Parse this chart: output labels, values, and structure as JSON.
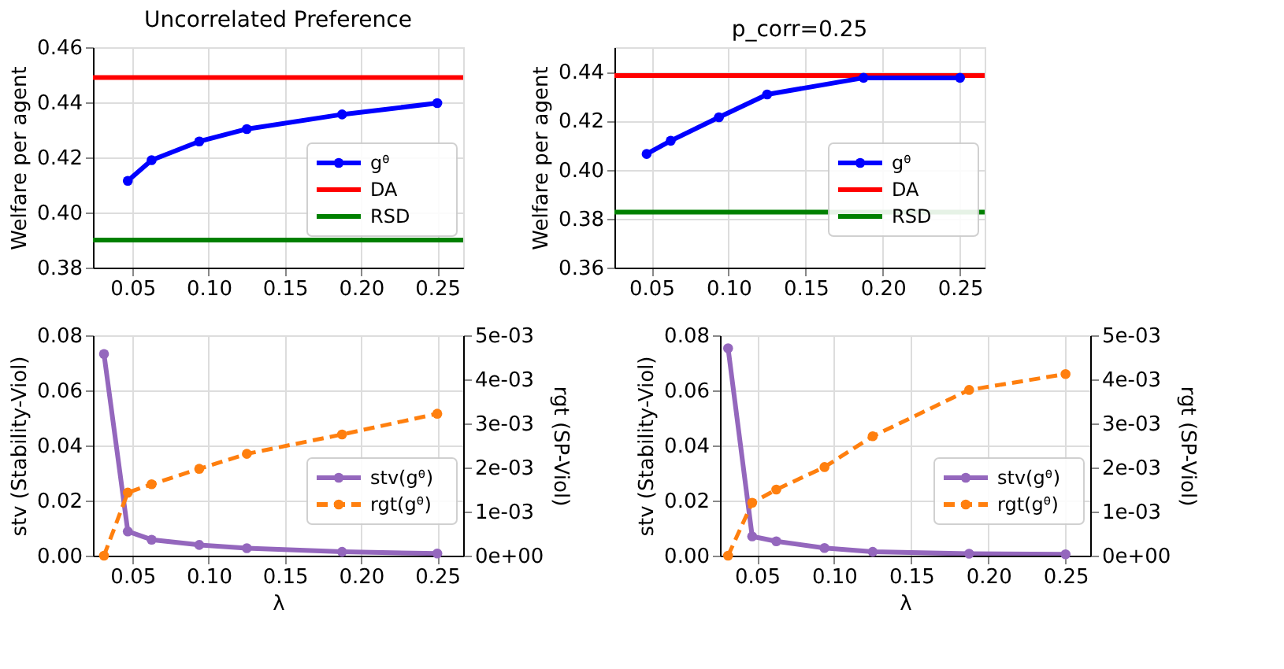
{
  "chart_data": [
    {
      "type": "line",
      "title": "Uncorrelated Preference",
      "ylabel": "Welfare per agent",
      "x": [
        0.046875,
        0.0625,
        0.09375,
        0.125,
        0.1875,
        0.25
      ],
      "series": [
        {
          "name": "gᶿ",
          "color": "#0000ff",
          "values": [
            0.4115,
            0.419,
            0.4258,
            0.4303,
            0.4356,
            0.4397
          ]
        }
      ],
      "ref_lines": [
        {
          "axis": "y",
          "value": 0.449,
          "label": "DA",
          "color": "#ff0000"
        },
        {
          "axis": "y",
          "value": 0.39,
          "label": "RSD",
          "color": "#008000"
        }
      ],
      "xlim": [
        0.024,
        0.267
      ],
      "xticks": [
        {
          "value": 0.05,
          "label": "0.05"
        },
        {
          "value": 0.1,
          "label": "0.10"
        },
        {
          "value": 0.15,
          "label": "0.15"
        },
        {
          "value": 0.2,
          "label": "0.20"
        },
        {
          "value": 0.25,
          "label": "0.25"
        }
      ],
      "ylim": [
        0.38,
        0.46
      ],
      "yticks": [
        {
          "value": 0.38,
          "label": "0.38"
        },
        {
          "value": 0.4,
          "label": "0.40"
        },
        {
          "value": 0.42,
          "label": "0.42"
        },
        {
          "value": 0.44,
          "label": "0.44"
        },
        {
          "value": 0.46,
          "label": "0.46"
        }
      ],
      "grid": true,
      "legend": "bottom right",
      "marker": "circle",
      "line_style": "solid"
    },
    {
      "type": "line",
      "title": "p_corr=0.25",
      "ylabel": "Welfare per agent",
      "x": [
        0.046875,
        0.0625,
        0.09375,
        0.125,
        0.1875,
        0.25
      ],
      "series": [
        {
          "name": "gᶿ",
          "color": "#0000ff",
          "values": [
            0.4064,
            0.4118,
            0.4214,
            0.4307,
            0.4375,
            0.4375
          ]
        }
      ],
      "ref_lines": [
        {
          "axis": "y",
          "value": 0.4384,
          "label": "DA",
          "color": "#ff0000"
        },
        {
          "axis": "y",
          "value": 0.3827,
          "label": "RSD",
          "color": "#008000"
        }
      ],
      "xlim": [
        0.026,
        0.266
      ],
      "xticks": [
        {
          "value": 0.05,
          "label": "0.05"
        },
        {
          "value": 0.1,
          "label": "0.10"
        },
        {
          "value": 0.15,
          "label": "0.15"
        },
        {
          "value": 0.2,
          "label": "0.20"
        },
        {
          "value": 0.25,
          "label": "0.25"
        }
      ],
      "ylim": [
        0.36,
        0.45
      ],
      "yticks": [
        {
          "value": 0.36,
          "label": "0.36"
        },
        {
          "value": 0.38,
          "label": "0.38"
        },
        {
          "value": 0.4,
          "label": "0.40"
        },
        {
          "value": 0.42,
          "label": "0.42"
        },
        {
          "value": 0.44,
          "label": "0.44"
        }
      ],
      "grid": true,
      "legend": "bottom right",
      "marker": "circle",
      "line_style": "solid"
    },
    {
      "type": "line",
      "xlabel": "λ",
      "ylabel": "stv (Stability-Viol)",
      "y2label": "rgt (SP-Viol)",
      "x": [
        0.03125,
        0.046875,
        0.0625,
        0.09375,
        0.125,
        0.1875,
        0.25
      ],
      "series": [
        {
          "name": "stv(gᶿ)",
          "color": "#9467bd",
          "line_style": "solid",
          "values": [
            0.0732,
            0.0088,
            0.0058,
            0.0039,
            0.0027,
            0.0014,
            0.0008
          ]
        },
        {
          "name": "rgt(gᶿ)",
          "color": "#ff7f0e",
          "axis": "y2",
          "line_style": "dashed",
          "values": [
            0,
            0.00143,
            0.00162,
            0.00197,
            0.00231,
            0.00275,
            0.00322
          ]
        }
      ],
      "xlim": [
        0.024,
        0.267
      ],
      "xticks": [
        {
          "value": 0.05,
          "label": "0.05"
        },
        {
          "value": 0.1,
          "label": "0.10"
        },
        {
          "value": 0.15,
          "label": "0.15"
        },
        {
          "value": 0.2,
          "label": "0.20"
        },
        {
          "value": 0.25,
          "label": "0.25"
        }
      ],
      "ylim": [
        0,
        0.08
      ],
      "yticks": [
        {
          "value": 0,
          "label": "0.00"
        },
        {
          "value": 0.02,
          "label": "0.02"
        },
        {
          "value": 0.04,
          "label": "0.04"
        },
        {
          "value": 0.06,
          "label": "0.06"
        },
        {
          "value": 0.08,
          "label": "0.08"
        }
      ],
      "y2lim": [
        0,
        0.005
      ],
      "y2ticks": [
        {
          "value": 0,
          "label": "0e+00"
        },
        {
          "value": 0.001,
          "label": "1e-03"
        },
        {
          "value": 0.002,
          "label": "2e-03"
        },
        {
          "value": 0.003,
          "label": "3e-03"
        },
        {
          "value": 0.004,
          "label": "4e-03"
        },
        {
          "value": 0.005,
          "label": "5e-03"
        }
      ],
      "grid": true,
      "legend": "bottom right",
      "marker": "circle"
    },
    {
      "type": "line",
      "xlabel": "λ",
      "ylabel": "stv (Stability-Viol)",
      "y2label": "rgt (SP-Viol)",
      "x": [
        0.03125,
        0.046875,
        0.0625,
        0.09375,
        0.125,
        0.1875,
        0.25
      ],
      "series": [
        {
          "name": "stv(gᶿ)",
          "color": "#9467bd",
          "line_style": "solid",
          "values": [
            0.0753,
            0.007,
            0.0052,
            0.0028,
            0.0014,
            0.0007,
            0.0005
          ]
        },
        {
          "name": "rgt(gᶿ)",
          "color": "#ff7f0e",
          "axis": "y2",
          "line_style": "dashed",
          "values": [
            0,
            0.0012,
            0.0015,
            0.00201,
            0.00271,
            0.00376,
            0.00412
          ]
        }
      ],
      "xlim": [
        0.026,
        0.266
      ],
      "xticks": [
        {
          "value": 0.05,
          "label": "0.05"
        },
        {
          "value": 0.1,
          "label": "0.10"
        },
        {
          "value": 0.15,
          "label": "0.15"
        },
        {
          "value": 0.2,
          "label": "0.20"
        },
        {
          "value": 0.25,
          "label": "0.25"
        }
      ],
      "ylim": [
        0,
        0.08
      ],
      "yticks": [
        {
          "value": 0,
          "label": "0.00"
        },
        {
          "value": 0.02,
          "label": "0.02"
        },
        {
          "value": 0.04,
          "label": "0.04"
        },
        {
          "value": 0.06,
          "label": "0.06"
        },
        {
          "value": 0.08,
          "label": "0.08"
        }
      ],
      "y2lim": [
        0,
        0.005
      ],
      "y2ticks": [
        {
          "value": 0,
          "label": "0e+00"
        },
        {
          "value": 0.001,
          "label": "1e-03"
        },
        {
          "value": 0.002,
          "label": "2e-03"
        },
        {
          "value": 0.003,
          "label": "3e-03"
        },
        {
          "value": 0.004,
          "label": "4e-03"
        },
        {
          "value": 0.005,
          "label": "5e-03"
        }
      ],
      "grid": true,
      "legend": "bottom right",
      "marker": "circle"
    }
  ]
}
